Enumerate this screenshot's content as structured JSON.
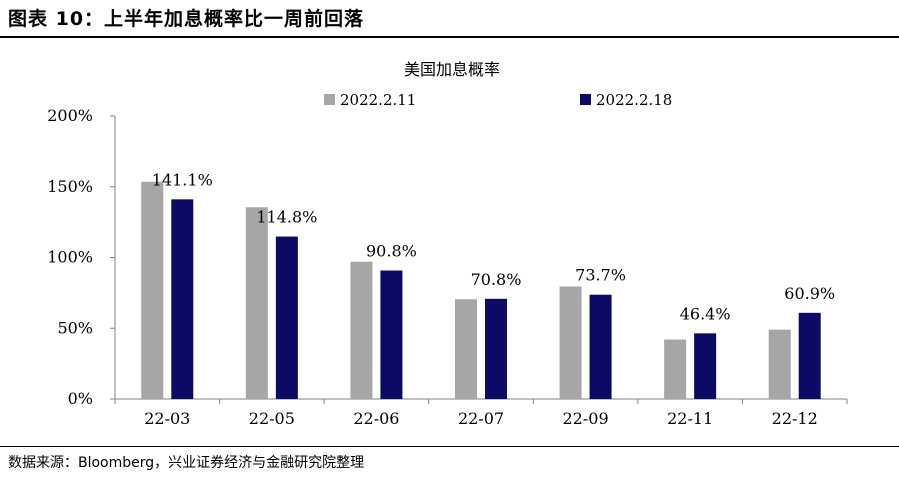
{
  "figure": {
    "title": "图表 10：上半年加息概率比一周前回落",
    "source": "数据来源：Bloomberg，兴业证券经济与金融研究院整理"
  },
  "colors": {
    "series_1": "#a6a6a6",
    "series_2": "#0b0b66",
    "axis": "#808080"
  },
  "chart_data": {
    "type": "bar",
    "title": "美国加息概率",
    "categories": [
      "22-03",
      "22-05",
      "22-06",
      "22-07",
      "22-09",
      "22-11",
      "22-12"
    ],
    "series": [
      {
        "name": "2022.2.11",
        "values": [
          153.5,
          135.5,
          97.0,
          70.5,
          79.5,
          42.0,
          49.0
        ]
      },
      {
        "name": "2022.2.18",
        "values": [
          141.1,
          114.8,
          90.8,
          70.8,
          73.7,
          46.4,
          60.9
        ]
      }
    ],
    "data_labels": [
      "141.1%",
      "114.8%",
      "90.8%",
      "70.8%",
      "73.7%",
      "46.4%",
      "60.9%"
    ],
    "yticks": [
      "0%",
      "50%",
      "100%",
      "150%",
      "200%"
    ],
    "ylim": [
      0,
      200
    ],
    "legend": "top",
    "grid": false
  }
}
